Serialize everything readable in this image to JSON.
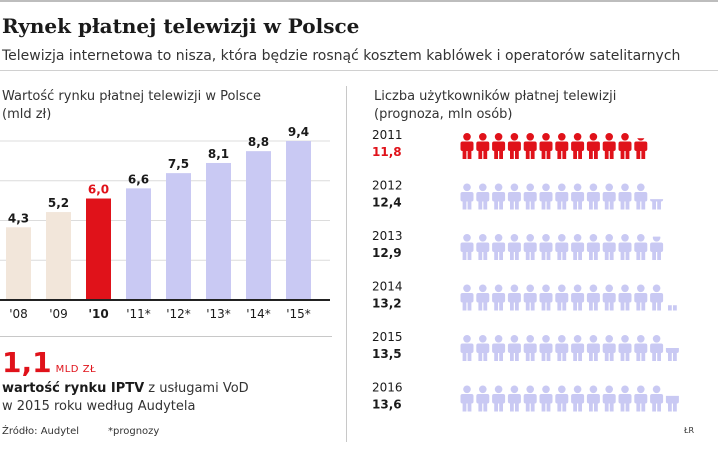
{
  "header": {
    "title": "Rynek płatnej telewizji w Polsce",
    "subtitle": "Telewizja internetowa to nisza, która będzie rosnąć kosztem kablówek i operatorów satelitarnych"
  },
  "left_panel": {
    "label_line1": "Wartość rynku płatnej telewizji w Polsce",
    "label_line2": "(mld zł)",
    "highlight_value": "1,1",
    "highlight_unit": "MLD ZŁ",
    "desc_bold": "wartość rynku IPTV",
    "desc_rest": " z usługami VoD",
    "desc_line2": "w 2015 roku według Audytela"
  },
  "right_panel": {
    "label_line1": "Liczba użytkowników płatnej telewizji",
    "label_line2": "(prognoza, mln osób)"
  },
  "footer": {
    "source": "Źródło: Audytel",
    "note": "*prognozy",
    "credit": "ŁR"
  },
  "colors": {
    "past": "#f2e6da",
    "highlight": "#e0121a",
    "forecast": "#c9c9f3",
    "text": "#1a1a1a",
    "grid": "#dcdcdc"
  },
  "chart_data": [
    {
      "type": "bar",
      "categories": [
        "'08",
        "'09",
        "'10",
        "'11*",
        "'12*",
        "'13*",
        "'14*",
        "'15*"
      ],
      "values": [
        4.3,
        5.2,
        6.0,
        6.6,
        7.5,
        8.1,
        8.8,
        9.4
      ],
      "value_labels": [
        "4,3",
        "5,2",
        "6,0",
        "6,6",
        "7,5",
        "8,1",
        "8,8",
        "9,4"
      ],
      "bar_kind": [
        "past",
        "past",
        "highlight",
        "forecast",
        "forecast",
        "forecast",
        "forecast",
        "forecast"
      ],
      "ylim": [
        0,
        9.4
      ]
    },
    {
      "type": "pictogram",
      "icon": "person-icon",
      "units_per_icon": 1,
      "rows": [
        {
          "year": "2011",
          "value": 11.8,
          "label": "11,8",
          "kind": "highlight"
        },
        {
          "year": "2012",
          "value": 12.4,
          "label": "12,4",
          "kind": "forecast"
        },
        {
          "year": "2013",
          "value": 12.9,
          "label": "12,9",
          "kind": "forecast"
        },
        {
          "year": "2014",
          "value": 13.2,
          "label": "13,2",
          "kind": "forecast"
        },
        {
          "year": "2015",
          "value": 13.5,
          "label": "13,5",
          "kind": "forecast"
        },
        {
          "year": "2016",
          "value": 13.6,
          "label": "13,6",
          "kind": "forecast"
        }
      ]
    }
  ]
}
